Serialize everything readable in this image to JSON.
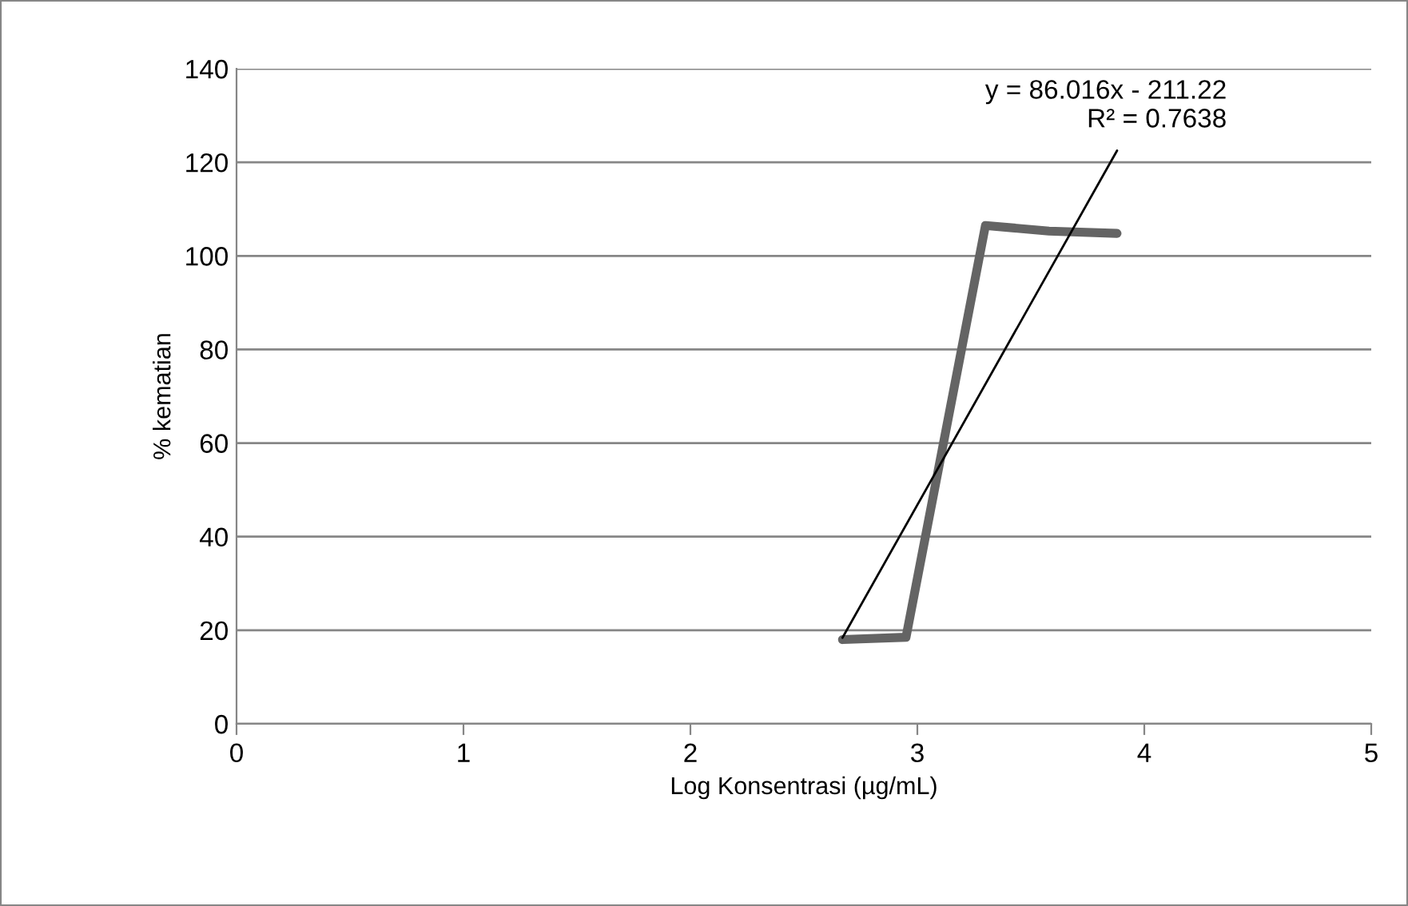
{
  "chart_data": {
    "type": "line",
    "xlabel": "Log Konsentrasi (µg/mL)",
    "ylabel": "% kematian",
    "series": [
      {
        "color": "#646464",
        "x": [
          2.67,
          2.95,
          3.3,
          3.58,
          3.88
        ],
        "values": [
          18,
          18.5,
          106.5,
          105.3,
          104.8
        ]
      },
      {
        "color": "#000000",
        "x": [
          2.67,
          3.88
        ],
        "values": [
          18.4,
          122.5
        ]
      }
    ],
    "annotations": [
      {
        "text": "y = 86.016x - 211.22\nR² = 0.7638",
        "x": 3.88,
        "y": 122.5
      }
    ],
    "xlim": [
      0,
      5
    ],
    "xticks": [
      0,
      1,
      2,
      3,
      4,
      5
    ],
    "ylim": [
      0,
      140
    ],
    "yticks": [
      0,
      20,
      40,
      60,
      80,
      100,
      120,
      140
    ],
    "grid": "y",
    "legend": false
  }
}
